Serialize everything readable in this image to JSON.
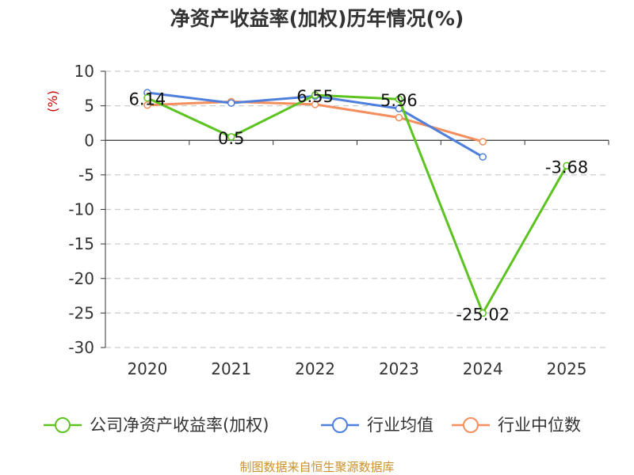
{
  "chart_data": {
    "type": "line",
    "title": "净资产收益率(加权)历年情况(%)",
    "ylabel": "(%)",
    "xlabel": "",
    "categories": [
      "2020",
      "2021",
      "2022",
      "2023",
      "2024",
      "2025"
    ],
    "ylim": [
      -30,
      10
    ],
    "yticks": [
      10,
      5,
      0,
      -5,
      -10,
      -15,
      -20,
      -25,
      -30
    ],
    "grid": "horizontal-dashed",
    "legend_position": "bottom",
    "series": [
      {
        "name": "公司净资产收益率(加权)",
        "color": "#5cc320",
        "values": [
          6.14,
          0.5,
          6.55,
          5.96,
          -25.02,
          -3.68
        ],
        "labels": [
          "6.14",
          "0.5",
          "6.55",
          "5.96",
          "-25.02",
          "-3.68"
        ]
      },
      {
        "name": "行业均值",
        "color": "#4f7fdc",
        "values": [
          6.9,
          5.4,
          6.4,
          4.6,
          -2.4,
          null
        ]
      },
      {
        "name": "行业中位数",
        "color": "#f48e5c",
        "values": [
          5.1,
          5.6,
          5.2,
          3.3,
          -0.2,
          null
        ]
      }
    ]
  },
  "source": "制图数据来自恒生聚源数据库"
}
